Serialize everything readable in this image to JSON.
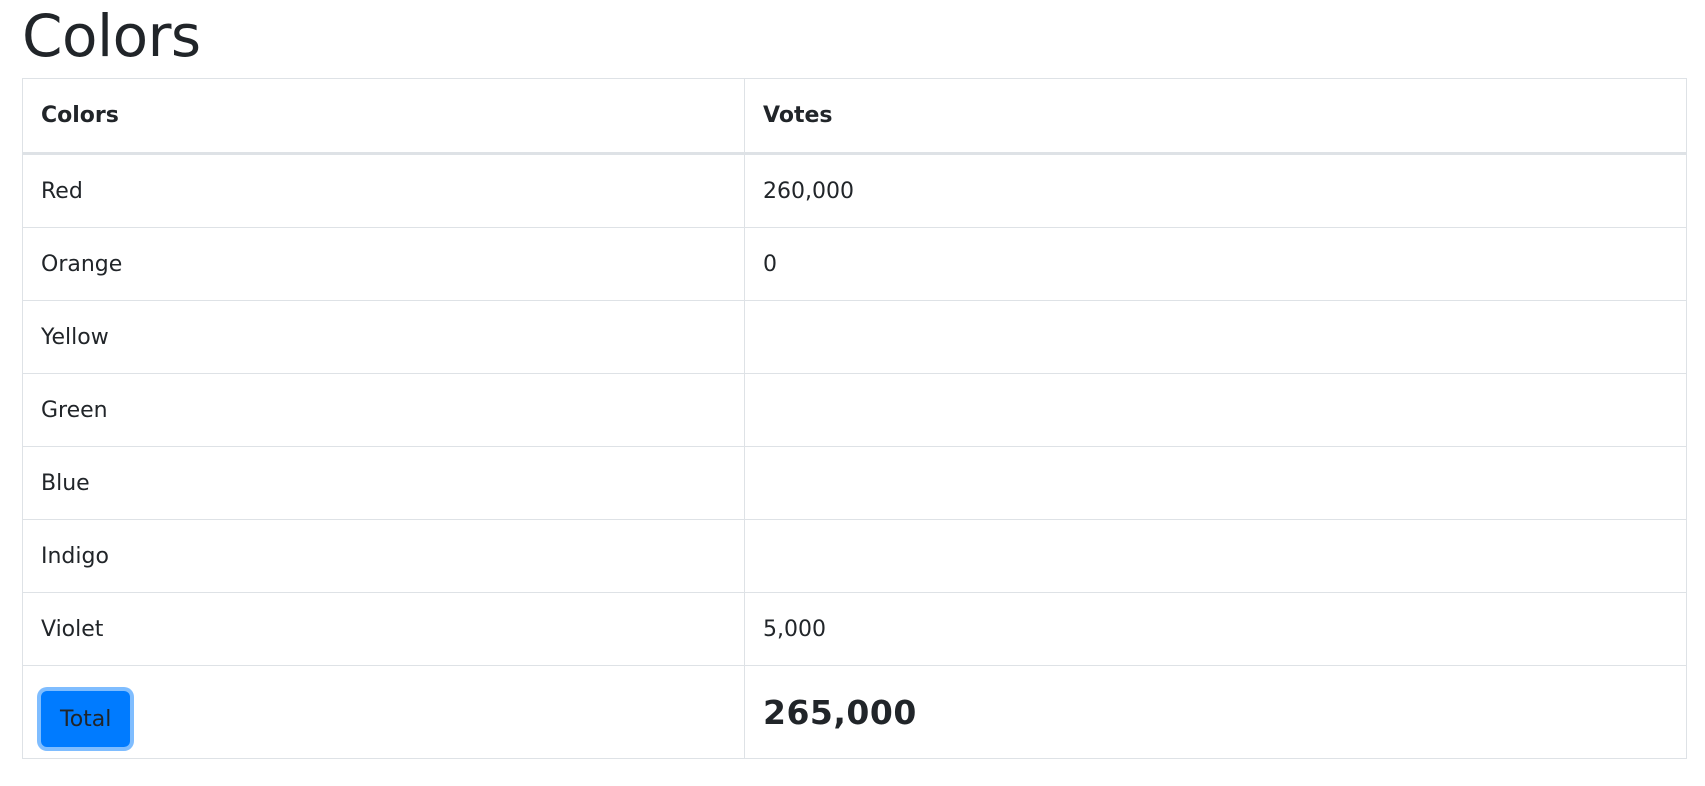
{
  "page": {
    "title": "Colors"
  },
  "table": {
    "headers": [
      "Colors",
      "Votes"
    ],
    "rows": [
      {
        "color": "Red",
        "votes": "260,000"
      },
      {
        "color": "Orange",
        "votes": "0"
      },
      {
        "color": "Yellow",
        "votes": ""
      },
      {
        "color": "Green",
        "votes": ""
      },
      {
        "color": "Blue",
        "votes": ""
      },
      {
        "color": "Indigo",
        "votes": ""
      },
      {
        "color": "Violet",
        "votes": "5,000"
      }
    ],
    "total": {
      "button_label": "Total",
      "value": "265,000"
    }
  },
  "colors": {
    "accent": "#007bff",
    "border": "#dee2e6",
    "text": "#212529"
  }
}
